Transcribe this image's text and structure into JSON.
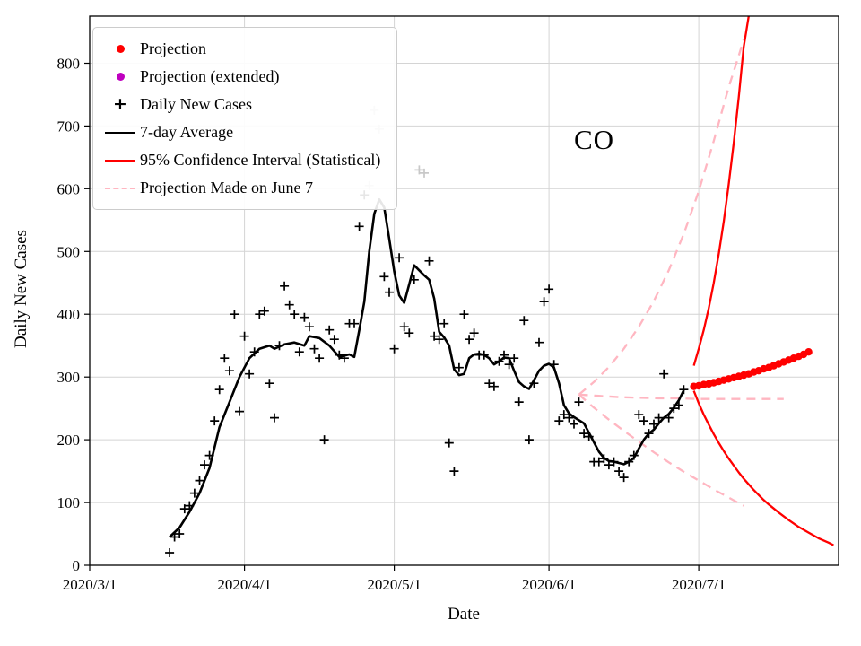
{
  "chart_data": {
    "type": "line",
    "title": "",
    "xlabel": "Date",
    "ylabel": "Daily New Cases",
    "annotation": {
      "text": "CO",
      "day": 100,
      "value": 665
    },
    "grid": true,
    "legend_position": "upper left",
    "xlim_days": [
      0,
      150
    ],
    "ylim": [
      0,
      875
    ],
    "x_ticks": [
      {
        "label": "2020/3/1",
        "day": 0
      },
      {
        "label": "2020/4/1",
        "day": 31
      },
      {
        "label": "2020/5/1",
        "day": 61
      },
      {
        "label": "2020/6/1",
        "day": 92
      },
      {
        "label": "2020/7/1",
        "day": 122
      }
    ],
    "y_ticks": [
      0,
      100,
      200,
      300,
      400,
      500,
      600,
      700,
      800
    ],
    "colors": {
      "projection": "#ff0000",
      "projection_extended": "#bf00bf",
      "daily_cases": "#000000",
      "average": "#000000",
      "confidence_interval": "#ff0000",
      "june7_projection": "#ffb6c1",
      "outlier_cases": "#c8c8c8",
      "grid": "#d4d4d4"
    },
    "legend": [
      {
        "label": "Projection",
        "marker": "dot",
        "color": "#ff0000"
      },
      {
        "label": "Projection (extended)",
        "marker": "dot",
        "color": "#bf00bf"
      },
      {
        "label": "Daily New Cases",
        "marker": "plus",
        "glyph": "+",
        "color": "#000000"
      },
      {
        "label": "7-day Average",
        "marker": "line",
        "color": "#000000"
      },
      {
        "label": "95% Confidence Interval (Statistical)",
        "marker": "line",
        "color": "#ff0000"
      },
      {
        "label": "Projection Made on June 7",
        "marker": "dashed",
        "color": "#ffb6c1"
      }
    ],
    "series": [
      {
        "name": "Projection Made on June 7 (upper bound)",
        "type": "dashed",
        "color": "#ffb6c1",
        "width": 2.3,
        "points": [
          [
            98,
            272
          ],
          [
            101,
            292
          ],
          [
            104,
            316
          ],
          [
            107,
            345
          ],
          [
            110,
            380
          ],
          [
            113,
            421
          ],
          [
            116,
            470
          ],
          [
            119,
            528
          ],
          [
            122,
            596
          ],
          [
            125,
            676
          ],
          [
            128,
            762
          ],
          [
            130,
            812
          ],
          [
            131,
            838
          ]
        ]
      },
      {
        "name": "Projection Made on June 7 (central)",
        "type": "dashed",
        "color": "#ffb6c1",
        "width": 2.3,
        "points": [
          [
            98,
            272
          ],
          [
            102,
            270
          ],
          [
            106,
            268
          ],
          [
            110,
            267
          ],
          [
            114,
            266
          ],
          [
            118,
            266
          ],
          [
            122,
            265
          ],
          [
            126,
            265
          ],
          [
            130,
            265
          ],
          [
            134,
            265
          ],
          [
            139,
            265
          ]
        ]
      },
      {
        "name": "Projection Made on June 7 (lower bound)",
        "type": "dashed",
        "color": "#ffb6c1",
        "width": 2.3,
        "points": [
          [
            98,
            272
          ],
          [
            101,
            251
          ],
          [
            104,
            232
          ],
          [
            107,
            214
          ],
          [
            110,
            197
          ],
          [
            113,
            180
          ],
          [
            116,
            164
          ],
          [
            119,
            149
          ],
          [
            122,
            135
          ],
          [
            125,
            121
          ],
          [
            128,
            108
          ],
          [
            130,
            99
          ],
          [
            131,
            95
          ]
        ]
      },
      {
        "name": "95% Confidence Interval upper",
        "type": "line",
        "color": "#ff0000",
        "width": 2.3,
        "points": [
          [
            121,
            318
          ],
          [
            122,
            345
          ],
          [
            123,
            375
          ],
          [
            124,
            410
          ],
          [
            125,
            450
          ],
          [
            126,
            496
          ],
          [
            127,
            548
          ],
          [
            128,
            607
          ],
          [
            129,
            673
          ],
          [
            130,
            746
          ],
          [
            131,
            826
          ],
          [
            132,
            875
          ]
        ]
      },
      {
        "name": "95% Confidence Interval lower",
        "type": "line",
        "color": "#ff0000",
        "width": 2.3,
        "points": [
          [
            121,
            278
          ],
          [
            122,
            258
          ],
          [
            123,
            240
          ],
          [
            124,
            224
          ],
          [
            125,
            209
          ],
          [
            126,
            195
          ],
          [
            127,
            182
          ],
          [
            128,
            170
          ],
          [
            129,
            159
          ],
          [
            130,
            148
          ],
          [
            131,
            138
          ],
          [
            132,
            129
          ],
          [
            133,
            120
          ],
          [
            134,
            112
          ],
          [
            135,
            104
          ],
          [
            136,
            97
          ],
          [
            138,
            84
          ],
          [
            140,
            72
          ],
          [
            142,
            61
          ],
          [
            144,
            52
          ],
          [
            146,
            43
          ],
          [
            148,
            36
          ],
          [
            149,
            32
          ]
        ]
      },
      {
        "name": "Daily New Cases (outliers)",
        "type": "plus",
        "color": "#c8c8c8",
        "points": [
          [
            56,
            605
          ],
          [
            57,
            725
          ],
          [
            58,
            695
          ],
          [
            66,
            630
          ],
          [
            67,
            625
          ]
        ]
      },
      {
        "name": "Daily New Cases",
        "type": "plus",
        "color": "#000000",
        "points": [
          [
            16,
            20
          ],
          [
            17,
            45
          ],
          [
            18,
            50
          ],
          [
            19,
            90
          ],
          [
            20,
            95
          ],
          [
            21,
            115
          ],
          [
            22,
            135
          ],
          [
            23,
            160
          ],
          [
            24,
            175
          ],
          [
            25,
            230
          ],
          [
            26,
            280
          ],
          [
            27,
            330
          ],
          [
            28,
            310
          ],
          [
            29,
            400
          ],
          [
            30,
            245
          ],
          [
            31,
            365
          ],
          [
            32,
            305
          ],
          [
            33,
            340
          ],
          [
            34,
            400
          ],
          [
            35,
            405
          ],
          [
            36,
            290
          ],
          [
            37,
            235
          ],
          [
            38,
            350
          ],
          [
            39,
            445
          ],
          [
            40,
            415
          ],
          [
            41,
            400
          ],
          [
            42,
            340
          ],
          [
            43,
            395
          ],
          [
            44,
            380
          ],
          [
            45,
            345
          ],
          [
            46,
            330
          ],
          [
            47,
            200
          ],
          [
            48,
            375
          ],
          [
            49,
            360
          ],
          [
            50,
            335
          ],
          [
            51,
            330
          ],
          [
            52,
            385
          ],
          [
            53,
            385
          ],
          [
            54,
            540
          ],
          [
            55,
            590
          ],
          [
            59,
            460
          ],
          [
            60,
            435
          ],
          [
            61,
            345
          ],
          [
            62,
            490
          ],
          [
            63,
            380
          ],
          [
            64,
            370
          ],
          [
            65,
            455
          ],
          [
            68,
            485
          ],
          [
            69,
            365
          ],
          [
            70,
            360
          ],
          [
            71,
            385
          ],
          [
            72,
            195
          ],
          [
            73,
            150
          ],
          [
            74,
            315
          ],
          [
            75,
            400
          ],
          [
            76,
            360
          ],
          [
            77,
            370
          ],
          [
            78,
            335
          ],
          [
            79,
            335
          ],
          [
            80,
            290
          ],
          [
            81,
            285
          ],
          [
            82,
            325
          ],
          [
            83,
            335
          ],
          [
            84,
            320
          ],
          [
            85,
            330
          ],
          [
            86,
            260
          ],
          [
            87,
            390
          ],
          [
            88,
            200
          ],
          [
            89,
            290
          ],
          [
            90,
            355
          ],
          [
            91,
            420
          ],
          [
            92,
            440
          ],
          [
            93,
            320
          ],
          [
            94,
            230
          ],
          [
            95,
            240
          ],
          [
            96,
            235
          ],
          [
            97,
            225
          ],
          [
            98,
            260
          ],
          [
            99,
            210
          ],
          [
            100,
            205
          ],
          [
            101,
            165
          ],
          [
            102,
            165
          ],
          [
            103,
            170
          ],
          [
            104,
            160
          ],
          [
            105,
            165
          ],
          [
            106,
            150
          ],
          [
            107,
            140
          ],
          [
            108,
            165
          ],
          [
            109,
            175
          ],
          [
            110,
            240
          ],
          [
            111,
            230
          ],
          [
            112,
            210
          ],
          [
            113,
            225
          ],
          [
            114,
            235
          ],
          [
            115,
            305
          ],
          [
            116,
            235
          ],
          [
            117,
            250
          ],
          [
            118,
            255
          ],
          [
            119,
            280
          ]
        ]
      },
      {
        "name": "7-day Average",
        "type": "line",
        "color": "#000000",
        "width": 2.6,
        "points": [
          [
            16,
            45
          ],
          [
            18,
            60
          ],
          [
            20,
            85
          ],
          [
            22,
            115
          ],
          [
            24,
            155
          ],
          [
            26,
            220
          ],
          [
            28,
            260
          ],
          [
            30,
            300
          ],
          [
            32,
            330
          ],
          [
            34,
            345
          ],
          [
            36,
            350
          ],
          [
            37,
            345
          ],
          [
            39,
            352
          ],
          [
            41,
            355
          ],
          [
            43,
            350
          ],
          [
            44,
            365
          ],
          [
            46,
            362
          ],
          [
            48,
            350
          ],
          [
            50,
            332
          ],
          [
            52,
            336
          ],
          [
            53,
            332
          ],
          [
            54,
            375
          ],
          [
            55,
            420
          ],
          [
            56,
            500
          ],
          [
            57,
            560
          ],
          [
            58,
            583
          ],
          [
            59,
            570
          ],
          [
            60,
            520
          ],
          [
            61,
            468
          ],
          [
            62,
            430
          ],
          [
            63,
            418
          ],
          [
            64,
            448
          ],
          [
            65,
            478
          ],
          [
            66,
            470
          ],
          [
            67,
            462
          ],
          [
            68,
            455
          ],
          [
            69,
            425
          ],
          [
            70,
            372
          ],
          [
            71,
            363
          ],
          [
            72,
            350
          ],
          [
            73,
            312
          ],
          [
            74,
            303
          ],
          [
            75,
            305
          ],
          [
            76,
            330
          ],
          [
            77,
            336
          ],
          [
            78,
            337
          ],
          [
            79,
            335
          ],
          [
            80,
            330
          ],
          [
            81,
            320
          ],
          [
            82,
            325
          ],
          [
            83,
            331
          ],
          [
            84,
            330
          ],
          [
            85,
            310
          ],
          [
            86,
            292
          ],
          [
            87,
            285
          ],
          [
            88,
            281
          ],
          [
            89,
            295
          ],
          [
            90,
            310
          ],
          [
            91,
            318
          ],
          [
            92,
            321
          ],
          [
            93,
            315
          ],
          [
            94,
            290
          ],
          [
            95,
            255
          ],
          [
            96,
            242
          ],
          [
            97,
            236
          ],
          [
            98,
            231
          ],
          [
            99,
            226
          ],
          [
            100,
            211
          ],
          [
            101,
            196
          ],
          [
            102,
            181
          ],
          [
            103,
            171
          ],
          [
            104,
            166
          ],
          [
            105,
            165
          ],
          [
            106,
            163
          ],
          [
            107,
            161
          ],
          [
            108,
            165
          ],
          [
            109,
            171
          ],
          [
            110,
            186
          ],
          [
            111,
            200
          ],
          [
            112,
            210
          ],
          [
            113,
            216
          ],
          [
            114,
            226
          ],
          [
            115,
            235
          ],
          [
            116,
            241
          ],
          [
            117,
            251
          ],
          [
            118,
            263
          ],
          [
            119,
            279
          ]
        ]
      },
      {
        "name": "Projection",
        "type": "dots",
        "color": "#ff0000",
        "r": 4.2,
        "points": [
          [
            121,
            285
          ],
          [
            122,
            286
          ],
          [
            123,
            288
          ],
          [
            124,
            289
          ],
          [
            125,
            291
          ],
          [
            126,
            293
          ],
          [
            127,
            295
          ],
          [
            128,
            297
          ],
          [
            129,
            299
          ],
          [
            130,
            301
          ],
          [
            131,
            303
          ],
          [
            132,
            305
          ],
          [
            133,
            308
          ],
          [
            134,
            310
          ],
          [
            135,
            313
          ],
          [
            136,
            315
          ],
          [
            137,
            318
          ],
          [
            138,
            321
          ],
          [
            139,
            324
          ],
          [
            140,
            327
          ],
          [
            141,
            330
          ],
          [
            142,
            333
          ],
          [
            143,
            336
          ],
          [
            144,
            340
          ]
        ]
      },
      {
        "name": "Projection (extended)",
        "type": "dots",
        "color": "#bf00bf",
        "r": 4.2,
        "points": []
      }
    ]
  }
}
